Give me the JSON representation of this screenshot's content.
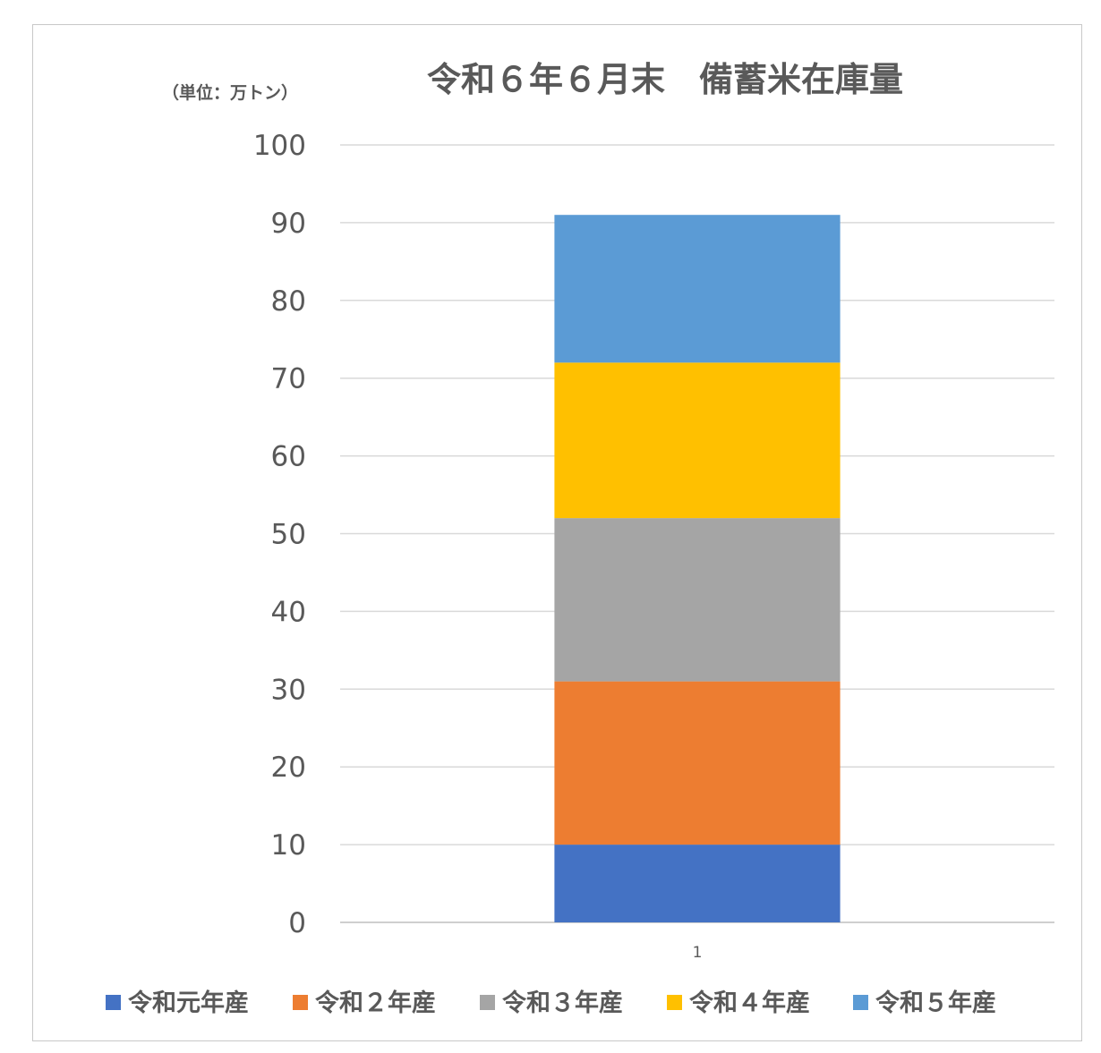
{
  "chart_data": {
    "type": "bar",
    "stacked": true,
    "title": "令和６年６月末　備蓄米在庫量",
    "unit_label": "（単位：万トン）",
    "categories": [
      "1"
    ],
    "ylim": [
      0,
      100
    ],
    "yticks": [
      "0",
      "10",
      "20",
      "30",
      "40",
      "50",
      "60",
      "70",
      "80",
      "90",
      "100"
    ],
    "grid": true,
    "legend_position": "bottom",
    "series": [
      {
        "name": "令和元年産",
        "values": [
          10
        ],
        "color": "#4472c4"
      },
      {
        "name": "令和２年産",
        "values": [
          21
        ],
        "color": "#ed7d31"
      },
      {
        "name": "令和３年産",
        "values": [
          21
        ],
        "color": "#a5a5a5"
      },
      {
        "name": "令和４年産",
        "values": [
          20
        ],
        "color": "#ffc000"
      },
      {
        "name": "令和５年産",
        "values": [
          19
        ],
        "color": "#5b9bd5"
      }
    ]
  }
}
